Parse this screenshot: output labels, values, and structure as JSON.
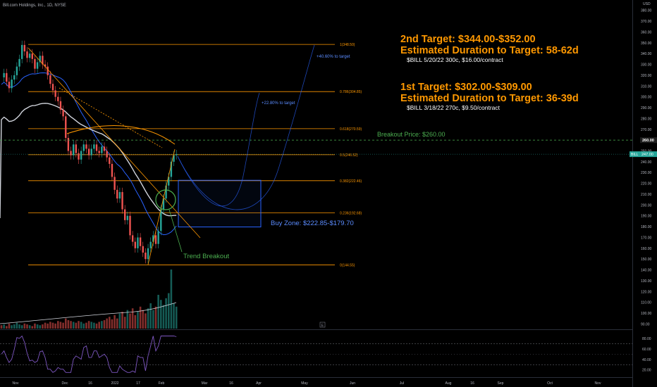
{
  "header": {
    "symbol_line": "Bill.com Holdings, Inc., 1D, NYSE"
  },
  "price_axis": {
    "currency": "USD",
    "ticks": [
      "380.00",
      "370.00",
      "360.00",
      "350.00",
      "340.00",
      "330.00",
      "320.00",
      "310.00",
      "300.00",
      "290.00",
      "280.00",
      "270.00",
      "260.00",
      "250.00",
      "240.00",
      "230.00",
      "220.00",
      "210.00",
      "200.00",
      "190.00",
      "180.00",
      "170.00",
      "160.00",
      "150.00",
      "140.00",
      "130.00",
      "120.00",
      "110.00",
      "100.00",
      "90.00"
    ],
    "badge_breakout": "260.00",
    "badge_last_symbol": "BILL",
    "badge_last_price": "247.00"
  },
  "rsi_axis": {
    "ticks": [
      "80.00",
      "60.00",
      "40.00",
      "20.00"
    ]
  },
  "time_axis": {
    "labels": [
      "Nov",
      "Dec",
      "16",
      "2022",
      "17",
      "Feb",
      "Mar",
      "16",
      "Apr",
      "May",
      "Jun",
      "Jul",
      "Aug",
      "16",
      "Sep",
      "Oct",
      "Nov"
    ]
  },
  "fib_levels": [
    {
      "label": "1(348.50)",
      "value": 348.5
    },
    {
      "label": "0.786(304.85)",
      "value": 304.85
    },
    {
      "label": "0.618(270.59)",
      "value": 270.59
    },
    {
      "label": "0.5(246.52)",
      "value": 246.52
    },
    {
      "label": "0.382(222.46)",
      "value": 222.46
    },
    {
      "label": "0.236(192.68)",
      "value": 192.68
    },
    {
      "label": "0(144.55)",
      "value": 144.55
    }
  ],
  "annotations": {
    "target2_title": "2nd Target: $344.00-$352.00",
    "target2_duration": "Estimated Duration to Target: 58-62d",
    "target2_option": "$BILL 5/20/22 300c, $16.00/contract",
    "target1_title": "1st Target: $302.00-$309.00",
    "target1_duration": "Estimated Duration to Target: 36-39d",
    "target1_option": "$BILL 3/18/22 270c, $9.50/contract",
    "breakout_price": "Breakout Price: $260.00",
    "buy_zone": "Buy Zone: $222.85-$179.70",
    "trend_breakout": "Trend Breakout",
    "pct_to_target_1": "+22.80% to target",
    "pct_to_target_2": "+40.60% to target"
  },
  "colors": {
    "fib": "#ff9800",
    "target_text": "#ff9800",
    "breakout": "#4caf50",
    "buy_zone": "#2962ff",
    "up_candle": "#26a69a",
    "down_candle": "#ef5350",
    "ma_blue": "#2962ff",
    "ma_white": "#d1d4dc",
    "rsi": "#7e57c2"
  },
  "chart_data": {
    "type": "candlestick",
    "symbol": "BILL",
    "interval": "1D",
    "exchange": "NYSE",
    "y_range": [
      85,
      385
    ],
    "fib_retracement": {
      "high": 348.5,
      "low": 144.55
    },
    "breakout_level": 260.0,
    "last_price": 247.0,
    "buy_zone": [
      179.7,
      222.85
    ],
    "targets": [
      {
        "name": "1st Target",
        "low": 302.0,
        "high": 309.0,
        "duration_days": "36-39"
      },
      {
        "name": "2nd Target",
        "low": 344.0,
        "high": 352.0,
        "duration_days": "58-62"
      }
    ],
    "price_path": [
      [
        0,
        318
      ],
      [
        1,
        322
      ],
      [
        2,
        314
      ],
      [
        3,
        308
      ],
      [
        4,
        316
      ],
      [
        5,
        320
      ],
      [
        6,
        328
      ],
      [
        7,
        335
      ],
      [
        8,
        348
      ],
      [
        9,
        342
      ],
      [
        10,
        336
      ],
      [
        11,
        340
      ],
      [
        12,
        335
      ],
      [
        13,
        326
      ],
      [
        14,
        332
      ],
      [
        15,
        338
      ],
      [
        16,
        330
      ],
      [
        17,
        328
      ],
      [
        18,
        320
      ],
      [
        19,
        312
      ],
      [
        20,
        306
      ],
      [
        21,
        300
      ],
      [
        22,
        296
      ],
      [
        23,
        288
      ],
      [
        24,
        282
      ],
      [
        25,
        262
      ],
      [
        26,
        250
      ],
      [
        27,
        246
      ],
      [
        28,
        256
      ],
      [
        29,
        248
      ],
      [
        30,
        242
      ],
      [
        31,
        250
      ],
      [
        32,
        256
      ],
      [
        33,
        252
      ],
      [
        34,
        246
      ],
      [
        35,
        252
      ],
      [
        36,
        256
      ],
      [
        37,
        250
      ],
      [
        38,
        248
      ],
      [
        39,
        254
      ],
      [
        40,
        250
      ],
      [
        41,
        244
      ],
      [
        42,
        238
      ],
      [
        43,
        226
      ],
      [
        44,
        214
      ],
      [
        45,
        206
      ],
      [
        46,
        212
      ],
      [
        47,
        196
      ],
      [
        48,
        186
      ],
      [
        49,
        190
      ],
      [
        50,
        172
      ],
      [
        51,
        166
      ],
      [
        52,
        160
      ],
      [
        53,
        170
      ],
      [
        54,
        162
      ],
      [
        55,
        156
      ],
      [
        56,
        150
      ],
      [
        57,
        160
      ],
      [
        58,
        166
      ],
      [
        59,
        172
      ],
      [
        60,
        164
      ],
      [
        61,
        176
      ],
      [
        62,
        196
      ],
      [
        63,
        206
      ],
      [
        64,
        218
      ],
      [
        65,
        226
      ],
      [
        66,
        240
      ],
      [
        67,
        246
      ],
      [
        68,
        247
      ]
    ],
    "volume": [
      4,
      5,
      3,
      6,
      4,
      5,
      7,
      5,
      4,
      6,
      5,
      4,
      3,
      6,
      5,
      4,
      5,
      7,
      6,
      8,
      7,
      6,
      9,
      8,
      7,
      12,
      10,
      9,
      8,
      7,
      9,
      8,
      6,
      7,
      9,
      8,
      7,
      6,
      8,
      9,
      10,
      12,
      14,
      11,
      16,
      12,
      18,
      20,
      14,
      22,
      18,
      24,
      16,
      20,
      26,
      22,
      18,
      24,
      30,
      22,
      26,
      40,
      34,
      28,
      36,
      42,
      70,
      30,
      26
    ],
    "rsi_levels": {
      "upper": 70,
      "mid": 50,
      "lower": 30
    }
  }
}
